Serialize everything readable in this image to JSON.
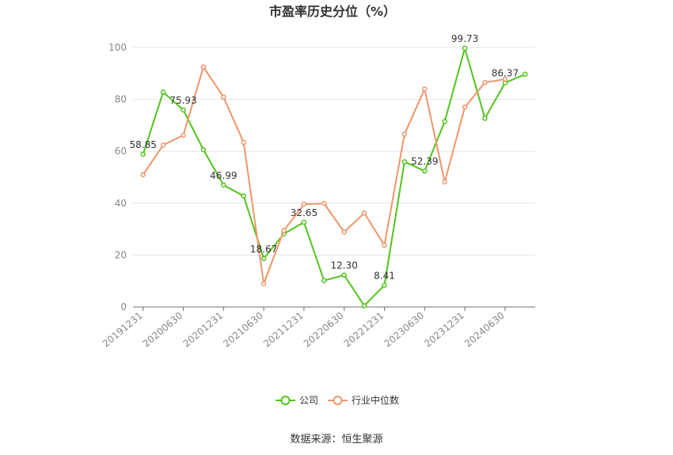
{
  "chart_data": {
    "type": "line",
    "title": "市盈率历史分位（%）",
    "x": [
      "20191231",
      "20200331",
      "20200630",
      "20200930",
      "20201231",
      "20210331",
      "20210630",
      "20210930",
      "20211231",
      "20220331",
      "20220630",
      "20220930",
      "20221231",
      "20230331",
      "20230630",
      "20230930",
      "20231231",
      "20240331",
      "20240630",
      "20240930"
    ],
    "x_tick_labels": [
      "20191231",
      "20200630",
      "20201231",
      "20210630",
      "20211231",
      "20220630",
      "20221231",
      "20230630",
      "20231231",
      "20240630"
    ],
    "ylim": [
      0,
      100
    ],
    "y_ticks": [
      0,
      20,
      40,
      60,
      80,
      100
    ],
    "grid": true,
    "legend_position": "bottom",
    "series": [
      {
        "name": "公司",
        "color": "#52c41a",
        "values": [
          58.85,
          82.8,
          75.93,
          60.6,
          46.99,
          42.8,
          18.67,
          28.2,
          32.65,
          10.2,
          12.3,
          0.5,
          8.41,
          56.0,
          52.39,
          71.5,
          99.73,
          72.7,
          86.37,
          89.7
        ],
        "labels": {
          "0": "58.85",
          "2": "75.93",
          "4": "46.99",
          "6": "18.67",
          "8": "32.65",
          "10": "12.30",
          "12": "8.41",
          "14": "52.39",
          "16": "99.73",
          "18": "86.37"
        }
      },
      {
        "name": "行业中位数",
        "color": "#f0956a",
        "values": [
          51.0,
          62.4,
          66.2,
          92.5,
          80.9,
          63.4,
          9.0,
          29.5,
          39.6,
          39.9,
          28.9,
          36.2,
          23.8,
          66.6,
          84.0,
          48.2,
          77.0,
          86.5,
          87.8,
          null
        ]
      }
    ]
  },
  "footer": {
    "source": "数据来源：恒生聚源"
  }
}
